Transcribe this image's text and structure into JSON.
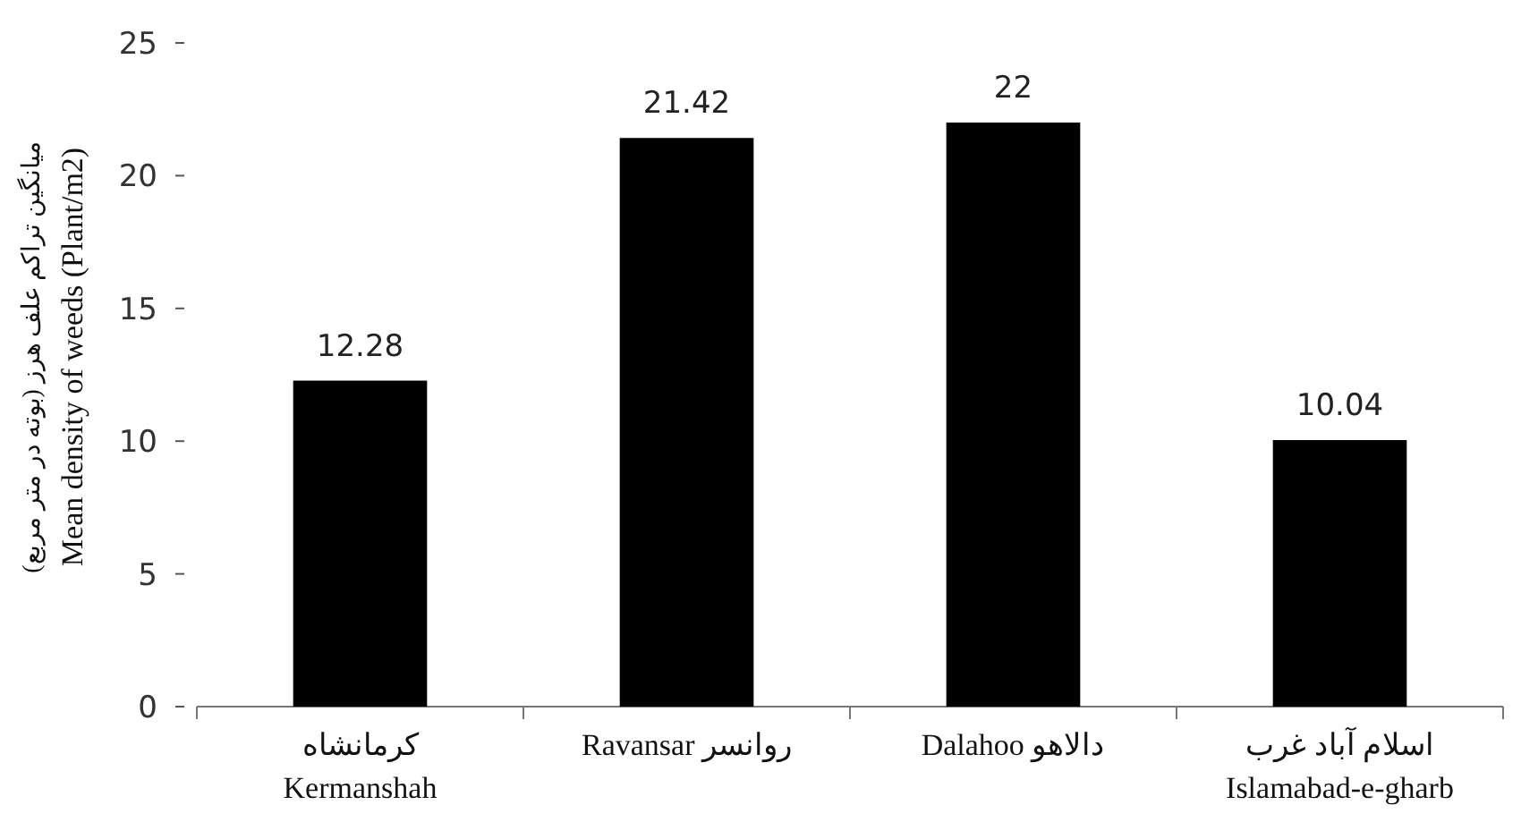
{
  "chart_data": {
    "type": "bar",
    "ylabel": "میانگین تراکم علف هرز (بوته در متر مربع)\nMean density of weeds (Plant/m2)",
    "categories": [
      "کرمانشاه\nKermanshah",
      "Ravansar روانسر",
      "Dalahoo دالاهو",
      "اسلام آباد غرب\nIslamabad-e-gharb"
    ],
    "values": [
      12.28,
      21.42,
      22,
      10.04
    ],
    "color": "#000000",
    "value_labels": [
      "12.28",
      "21.42",
      "22",
      "10.04"
    ],
    "ylim": [
      0,
      25
    ],
    "yticks": [
      0,
      5,
      10,
      15,
      20,
      25
    ]
  }
}
